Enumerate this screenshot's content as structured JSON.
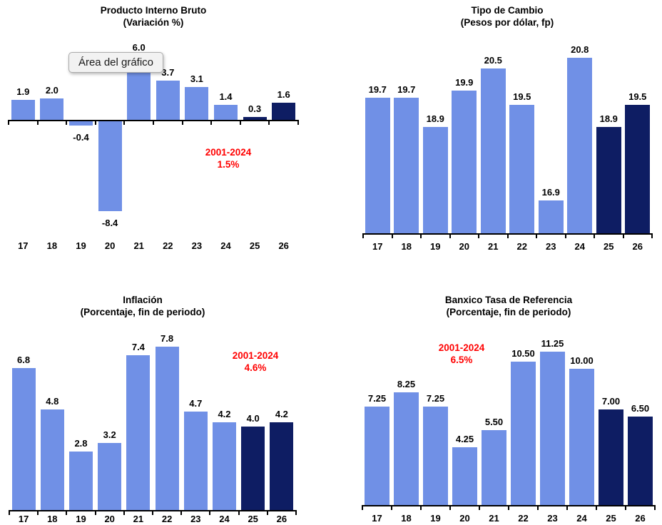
{
  "colors": {
    "bar_actual": "#7090E6",
    "bar_forecast": "#0E1D63",
    "annotation_red": "#FF0000",
    "axis": "#000000",
    "background": "#FFFFFF"
  },
  "tooltip": {
    "text": "Área del gráfico"
  },
  "chart_data": [
    {
      "id": "pib",
      "type": "bar",
      "title": "Producto Interno Bruto",
      "subtitle": "(Variación %)",
      "categories": [
        "17",
        "18",
        "19",
        "20",
        "21",
        "22",
        "23",
        "24",
        "25",
        "26"
      ],
      "values": [
        1.9,
        2.0,
        -0.4,
        -8.4,
        6.0,
        3.7,
        3.1,
        1.4,
        0.3,
        1.6
      ],
      "labels": [
        "1.9",
        "2.0",
        "-0.4",
        "-8.4",
        "6.0",
        "3.7",
        "3.1",
        "1.4",
        "0.3",
        "1.6"
      ],
      "forecast_start_index": 8,
      "annotation": {
        "line1": "2001-2024",
        "line2": "1.5%"
      },
      "ylim": [
        -8.4,
        6.0
      ],
      "baseline_value": 0,
      "grid": false,
      "legend": "none"
    },
    {
      "id": "fx",
      "type": "bar",
      "title": "Tipo de Cambio",
      "subtitle": "(Pesos por dólar, fp)",
      "categories": [
        "17",
        "18",
        "19",
        "20",
        "21",
        "22",
        "23",
        "24",
        "25",
        "26"
      ],
      "values": [
        19.7,
        19.7,
        18.9,
        19.9,
        20.5,
        19.5,
        16.9,
        20.8,
        18.9,
        19.5
      ],
      "labels": [
        "19.7",
        "19.7",
        "18.9",
        "19.9",
        "20.5",
        "19.5",
        "16.9",
        "20.8",
        "18.9",
        "19.5"
      ],
      "forecast_start_index": 8,
      "annotation": null,
      "ylim": [
        16,
        21
      ],
      "baseline_value": 16,
      "grid": false,
      "legend": "none"
    },
    {
      "id": "inf",
      "type": "bar",
      "title": "Inflación",
      "subtitle": "(Porcentaje, fin de periodo)",
      "categories": [
        "17",
        "18",
        "19",
        "20",
        "21",
        "22",
        "23",
        "24",
        "25",
        "26"
      ],
      "values": [
        6.8,
        4.8,
        2.8,
        3.2,
        7.4,
        7.8,
        4.7,
        4.2,
        4.0,
        4.2
      ],
      "labels": [
        "6.8",
        "4.8",
        "2.8",
        "3.2",
        "7.4",
        "7.8",
        "4.7",
        "4.2",
        "4.0",
        "4.2"
      ],
      "forecast_start_index": 8,
      "annotation": {
        "line1": "2001-2024",
        "line2": "4.6%"
      },
      "ylim": [
        0,
        7.8
      ],
      "baseline_value": 0,
      "grid": false,
      "legend": "none"
    },
    {
      "id": "tasa",
      "type": "bar",
      "title": "Banxico Tasa de Referencia",
      "subtitle": "(Porcentaje, fin de periodo)",
      "categories": [
        "17",
        "18",
        "19",
        "20",
        "21",
        "22",
        "23",
        "24",
        "25",
        "26"
      ],
      "values": [
        7.25,
        8.25,
        7.25,
        4.25,
        5.5,
        10.5,
        11.25,
        10.0,
        7.0,
        6.5
      ],
      "labels": [
        "7.25",
        "8.25",
        "7.25",
        "4.25",
        "5.50",
        "10.50",
        "11.25",
        "10.00",
        "7.00",
        "6.50"
      ],
      "forecast_start_index": 8,
      "annotation": {
        "line1": "2001-2024",
        "line2": "6.5%"
      },
      "ylim": [
        0,
        11.25
      ],
      "baseline_value": 0,
      "grid": false,
      "legend": "none"
    }
  ]
}
